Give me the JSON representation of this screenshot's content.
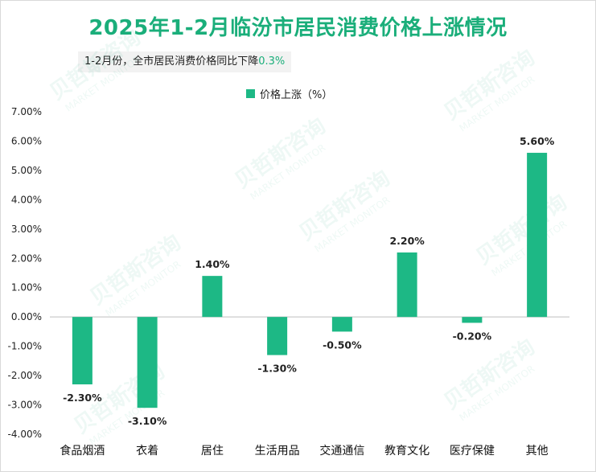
{
  "title": "2025年1-2月临汾市居民消费价格上涨情况",
  "note": {
    "text": "1-2月份，全市居民消费价格同比下降",
    "highlight": "0.3%"
  },
  "watermark": {
    "brand": "贝哲斯咨询",
    "sub": "MARKET MONITOR"
  },
  "colors": {
    "bar": "#1db885",
    "title": "#1aae7a"
  },
  "chart_data": {
    "type": "bar",
    "categories": [
      "食品烟酒",
      "衣着",
      "居住",
      "生活用品",
      "交通通信",
      "教育文化",
      "医疗保健",
      "其他"
    ],
    "series": [
      {
        "name": "价格上涨（%）",
        "values": [
          -2.3,
          -3.1,
          1.4,
          -1.3,
          -0.5,
          2.2,
          -0.2,
          5.6
        ]
      }
    ],
    "data_labels": [
      "-2.30%",
      "-3.10%",
      "1.40%",
      "-1.30%",
      "-0.50%",
      "2.20%",
      "-0.20%",
      "5.60%"
    ],
    "y_ticks": [
      "7.00%",
      "6.00%",
      "5.00%",
      "4.00%",
      "3.00%",
      "2.00%",
      "1.00%",
      "0.00%",
      "-1.00%",
      "-2.00%",
      "-3.00%",
      "-4.00%"
    ],
    "ylim": [
      -4,
      7
    ],
    "grid": false,
    "legend_position": "top"
  }
}
